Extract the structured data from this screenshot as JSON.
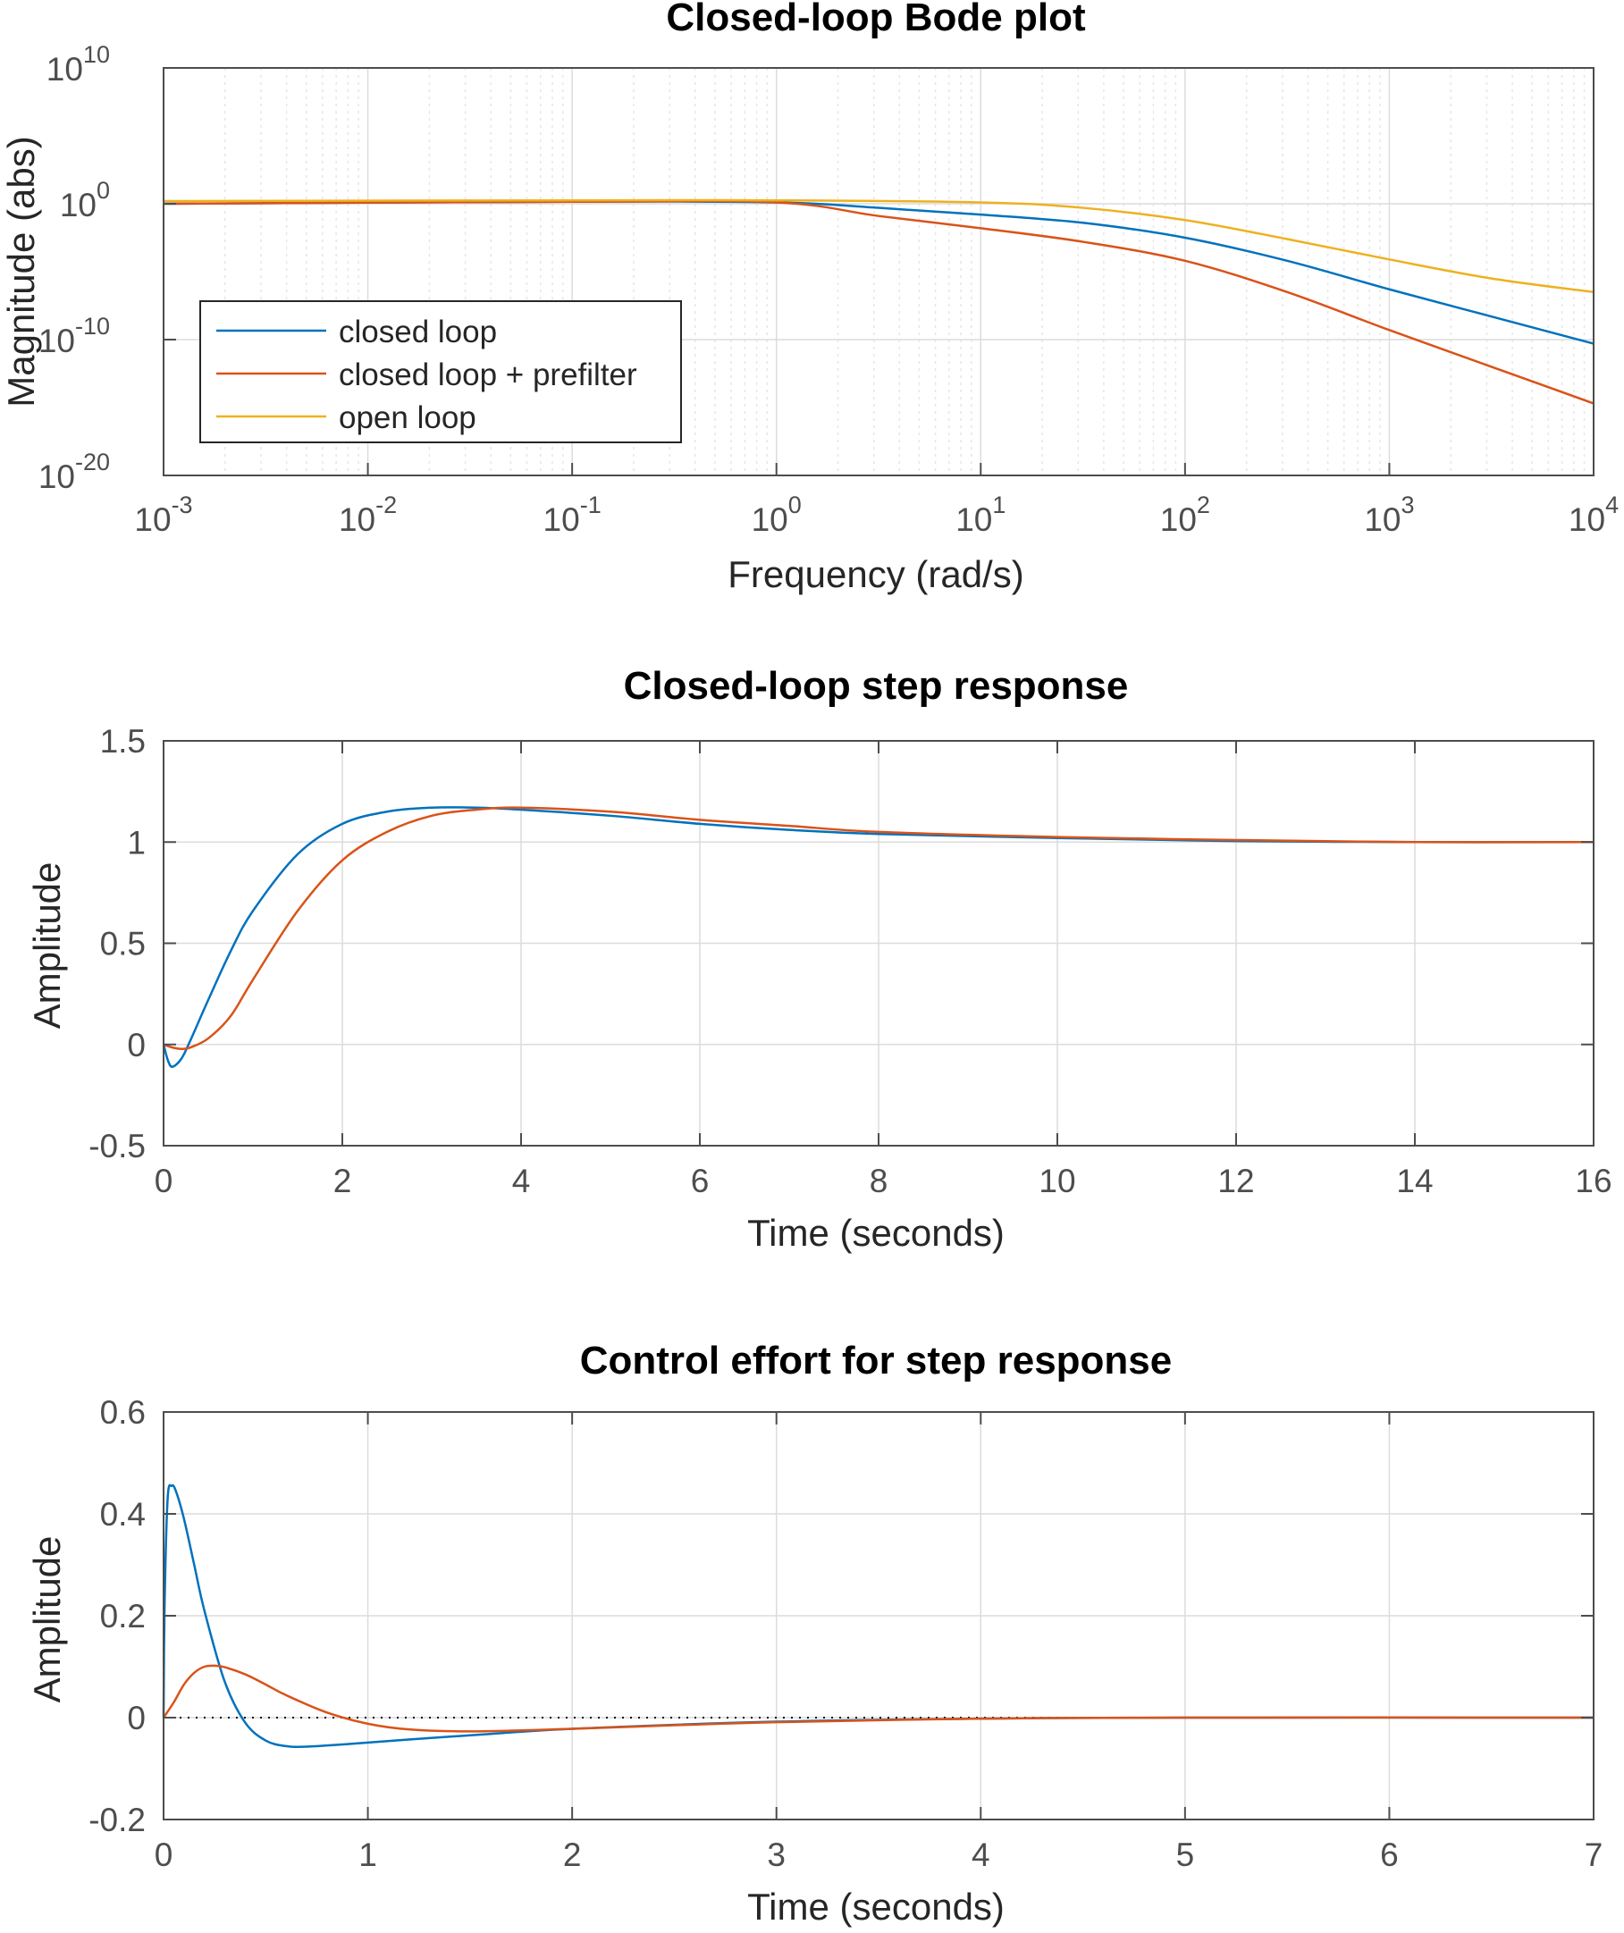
{
  "colors": {
    "closed_loop": "#0072bd",
    "closed_loop_prefilter": "#d95319",
    "open_loop": "#edb120",
    "axes": "#4d4d4d",
    "grid": "#dcdcdc",
    "text": "#262626"
  },
  "chart_data": [
    {
      "type": "line",
      "title": "Closed-loop Bode plot",
      "xlabel": "Frequency  (rad/s)",
      "ylabel": "Magnitude (abs)",
      "xscale": "log",
      "yscale": "log",
      "xlim_exp": [
        -3,
        4
      ],
      "ylim_exp": [
        -20,
        10
      ],
      "xticks": [
        {
          "base": "10",
          "exp": "-3"
        },
        {
          "base": "10",
          "exp": "-2"
        },
        {
          "base": "10",
          "exp": "-1"
        },
        {
          "base": "10",
          "exp": "0"
        },
        {
          "base": "10",
          "exp": "1"
        },
        {
          "base": "10",
          "exp": "2"
        },
        {
          "base": "10",
          "exp": "3"
        },
        {
          "base": "10",
          "exp": "4"
        }
      ],
      "yticks": [
        {
          "base": "10",
          "exp": "10"
        },
        {
          "base": "10",
          "exp": "0"
        },
        {
          "base": "10",
          "exp": "-10"
        },
        {
          "base": "10",
          "exp": "-20"
        }
      ],
      "grid": true,
      "minor_grid": true,
      "legend": {
        "position": "bottom-left",
        "entries": [
          "closed loop",
          "closed loop + prefilter",
          "open loop"
        ]
      },
      "series": [
        {
          "name": "closed loop",
          "color_key": "closed_loop",
          "log10_x": [
            -3,
            -1,
            0,
            0.5,
            1,
            1.5,
            2,
            2.5,
            3,
            3.5,
            4
          ],
          "log10_y": [
            0,
            0.15,
            0.1,
            -0.3,
            -0.8,
            -1.4,
            -2.5,
            -4.2,
            -6.3,
            -8.3,
            -10.3
          ]
        },
        {
          "name": "closed loop + prefilter",
          "color_key": "closed_loop_prefilter",
          "log10_x": [
            -3,
            -1,
            0,
            0.5,
            1,
            1.5,
            2,
            2.5,
            3,
            3.5,
            4
          ],
          "log10_y": [
            0,
            0.15,
            0.1,
            -0.9,
            -1.8,
            -2.8,
            -4.2,
            -6.5,
            -9.3,
            -12.0,
            -14.7
          ]
        },
        {
          "name": "open loop",
          "color_key": "open_loop",
          "log10_x": [
            -3,
            -1,
            0,
            1,
            1.5,
            2,
            2.5,
            3,
            3.5,
            4
          ],
          "log10_y": [
            0.2,
            0.25,
            0.25,
            0.1,
            -0.3,
            -1.2,
            -2.6,
            -4.1,
            -5.5,
            -6.5
          ]
        }
      ]
    },
    {
      "type": "line",
      "title": "Closed-loop step response",
      "xlabel": "Time (seconds)",
      "ylabel": "Amplitude",
      "xlim": [
        0,
        16
      ],
      "ylim": [
        -0.5,
        1.5
      ],
      "xticks": [
        "0",
        "2",
        "4",
        "6",
        "8",
        "10",
        "12",
        "14",
        "16"
      ],
      "yticks": [
        "1.5",
        "1",
        "0.5",
        "0",
        "-0.5"
      ],
      "grid": true,
      "series": [
        {
          "name": "closed loop",
          "color_key": "closed_loop",
          "x": [
            0,
            0.05,
            0.1,
            0.2,
            0.3,
            0.5,
            0.75,
            1.0,
            1.5,
            2.0,
            2.5,
            3.0,
            3.5,
            4.0,
            5.0,
            6.0,
            7.0,
            8.0,
            10.0,
            12.0,
            14.0,
            16.0
          ],
          "y": [
            0,
            -0.08,
            -0.11,
            -0.07,
            0.02,
            0.22,
            0.46,
            0.66,
            0.94,
            1.09,
            1.15,
            1.17,
            1.17,
            1.16,
            1.13,
            1.09,
            1.06,
            1.04,
            1.02,
            1.005,
            1.0,
            1.0
          ]
        },
        {
          "name": "closed loop + prefilter",
          "color_key": "closed_loop_prefilter",
          "x": [
            0,
            0.1,
            0.2,
            0.3,
            0.5,
            0.75,
            1.0,
            1.5,
            2.0,
            2.5,
            3.0,
            3.5,
            4.0,
            5.0,
            6.0,
            7.0,
            8.0,
            10.0,
            12.0,
            14.0,
            16.0
          ],
          "y": [
            0,
            -0.015,
            -0.022,
            -0.015,
            0.03,
            0.14,
            0.32,
            0.66,
            0.91,
            1.05,
            1.13,
            1.16,
            1.17,
            1.15,
            1.11,
            1.08,
            1.05,
            1.025,
            1.01,
            1.0,
            1.0
          ]
        }
      ]
    },
    {
      "type": "line",
      "title": "Control effort for step response",
      "xlabel": "Time (seconds)",
      "ylabel": "Amplitude",
      "xlim": [
        0,
        7
      ],
      "ylim": [
        -0.2,
        0.6
      ],
      "xticks": [
        "0",
        "1",
        "2",
        "3",
        "4",
        "5",
        "6",
        "7"
      ],
      "yticks": [
        "0.6",
        "0.4",
        "0.2",
        "0",
        "-0.2"
      ],
      "grid": true,
      "zero_line": "dotted",
      "series": [
        {
          "name": "closed loop",
          "color_key": "closed_loop",
          "x": [
            0,
            0.005,
            0.02,
            0.04,
            0.06,
            0.1,
            0.15,
            0.2,
            0.3,
            0.4,
            0.5,
            0.6,
            0.7,
            0.9,
            1.2,
            1.6,
            2.0,
            3.0,
            4.0,
            5.0,
            7.0
          ],
          "y": [
            0,
            0.22,
            0.43,
            0.455,
            0.445,
            0.39,
            0.3,
            0.21,
            0.07,
            -0.01,
            -0.045,
            -0.056,
            -0.057,
            -0.052,
            -0.043,
            -0.032,
            -0.022,
            -0.008,
            -0.002,
            0.0,
            0.0
          ]
        },
        {
          "name": "closed loop + prefilter",
          "color_key": "closed_loop_prefilter",
          "x": [
            0,
            0.05,
            0.1,
            0.15,
            0.2,
            0.25,
            0.3,
            0.4,
            0.5,
            0.6,
            0.8,
            1.0,
            1.2,
            1.5,
            2.0,
            2.5,
            3.0,
            4.0,
            5.0,
            7.0
          ],
          "y": [
            0,
            0.03,
            0.065,
            0.088,
            0.1,
            0.102,
            0.099,
            0.085,
            0.065,
            0.044,
            0.01,
            -0.012,
            -0.023,
            -0.027,
            -0.022,
            -0.015,
            -0.009,
            -0.002,
            0.0,
            0.0
          ]
        }
      ]
    }
  ]
}
